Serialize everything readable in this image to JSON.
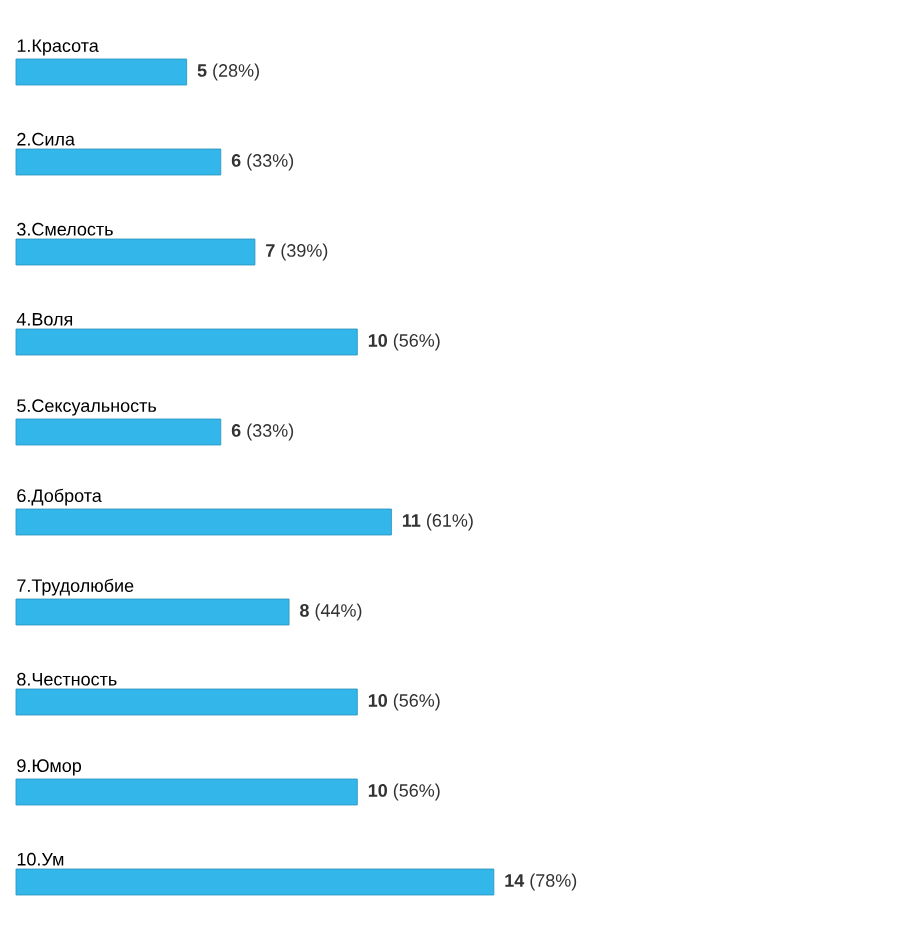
{
  "chart_data": {
    "type": "bar",
    "orientation": "horizontal",
    "categories": [
      "1.Красота",
      "2.Сила",
      "3.Смелость",
      "4.Воля",
      "5.Сексуальность",
      "6.Доброта",
      "7.Трудолюбие",
      "8.Честность",
      "9.Юмор",
      "10.Ум"
    ],
    "values": [
      5,
      6,
      7,
      10,
      6,
      11,
      8,
      10,
      10,
      14
    ],
    "value_labels": [
      "**5** (28%)",
      "**6** (33%)",
      "**7** (39%)",
      "**10** (56%)",
      "**6** (33%)",
      "**11** (61%)",
      "**8** (44%)",
      "**10** (56%)",
      "**10** (56%)",
      "**14** (78%)"
    ],
    "color": "#33b6ea"
  }
}
